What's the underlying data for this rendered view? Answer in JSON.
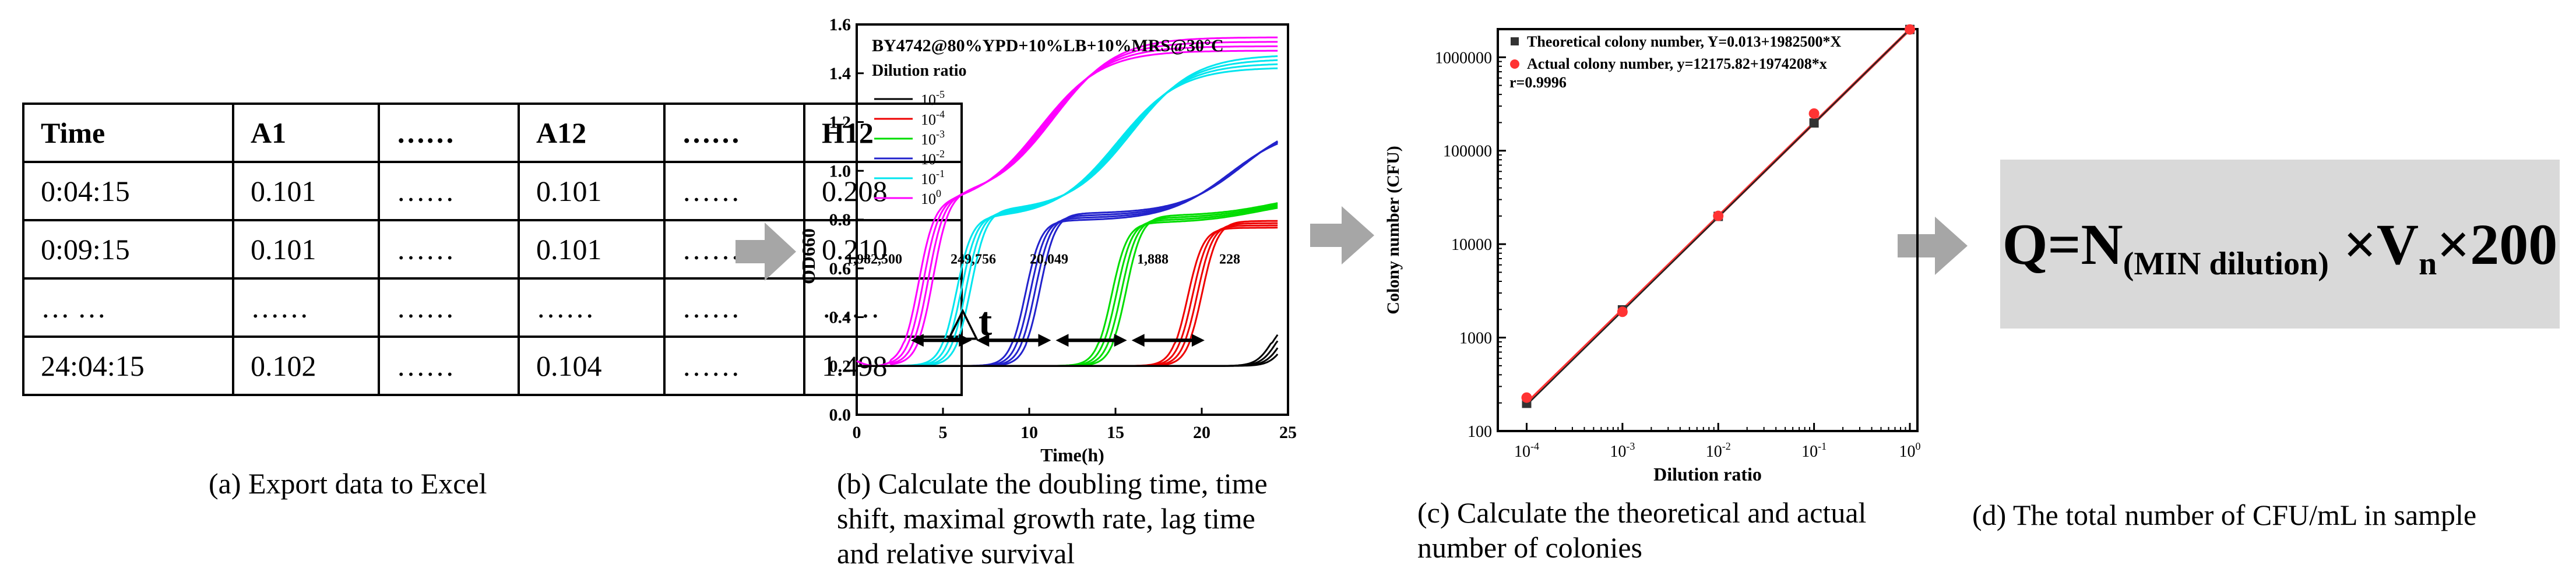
{
  "panel_a": {
    "caption": "(a) Export data to Excel",
    "header": [
      "Time",
      "A1",
      "……",
      "A12",
      "……",
      "H12"
    ],
    "rows": [
      [
        "0:04:15",
        "0.101",
        "……",
        "0.101",
        "……",
        "0.208"
      ],
      [
        "0:09:15",
        "0.101",
        "……",
        "0.101",
        "……",
        "0.210"
      ],
      [
        "… …",
        "……",
        "……",
        "……",
        "……",
        "……"
      ],
      [
        "24:04:15",
        "0.102",
        "……",
        "0.104",
        "……",
        "1.498"
      ]
    ]
  },
  "panel_b": {
    "caption_lines": [
      "(b) Calculate the doubling time, time",
      "shift, maximal growth rate, lag time",
      "and relative survival"
    ],
    "delta_t_label": "△t",
    "colony_labels": [
      "1,982,500",
      "249,756",
      "20,049",
      "1,888",
      "228"
    ]
  },
  "panel_c": {
    "caption_lines": [
      "(c) Calculate the theoretical and actual",
      "number of colonies"
    ]
  },
  "panel_d": {
    "caption": "(d) The total number of CFU/mL in sample",
    "formula": {
      "q": "Q=N",
      "sub_n": "(MIN dilution)",
      "mid": "×V",
      "sub_v": "n",
      "end": "×200"
    }
  },
  "colors": {
    "arrow": "#a6a6a6",
    "box": "#d9d9d9"
  },
  "chart_data": [
    {
      "type": "line",
      "title": "BY4742@80%YPD+10%LB+10%MRS@30°C",
      "xlabel": "Time(h)",
      "ylabel": "OD660",
      "xlim": [
        0,
        25
      ],
      "ylim": [
        0.0,
        1.6
      ],
      "xticks": [
        0,
        5,
        10,
        15,
        20,
        25
      ],
      "yticks": [
        0.0,
        0.2,
        0.4,
        0.6,
        0.8,
        1.0,
        1.2,
        1.4,
        1.6
      ],
      "legend_title": "Dilution ratio",
      "legend_position": "top-left",
      "series": [
        {
          "name": "10^0",
          "color": "#ff00ff",
          "lag_h": 1.0,
          "mid1_h": 4.0,
          "plateau1": 0.87,
          "mid2_h": 11.0,
          "final": 1.52
        },
        {
          "name": "10^-1",
          "color": "#00e5ee",
          "lag_h": 4.5,
          "mid1_h": 6.2,
          "plateau1": 0.82,
          "mid2_h": 15.5,
          "final": 1.45
        },
        {
          "name": "10^-2",
          "color": "#2222cc",
          "lag_h": 8.5,
          "mid1_h": 10.2,
          "plateau1": 0.81,
          "mid2_h": 22.0,
          "final": 1.2
        },
        {
          "name": "10^-3",
          "color": "#00dd00",
          "lag_h": 12.5,
          "mid1_h": 15.2,
          "plateau1": 0.8,
          "mid2_h": 23.8,
          "final": 0.9
        },
        {
          "name": "10^-4",
          "color": "#ee0000",
          "lag_h": 17.0,
          "mid1_h": 19.6,
          "plateau1": 0.78,
          "mid2_h": 30.0,
          "final": 0.8
        },
        {
          "name": "10^-5",
          "color": "#000000",
          "lag_h": 20.5,
          "mid1_h": 24.5,
          "plateau1": 0.4,
          "mid2_h": 40.0,
          "final": 0.4
        }
      ],
      "arrow_points_h": [
        3.0,
        6.8,
        11.4,
        15.8,
        20.3
      ]
    },
    {
      "type": "scatter",
      "xlabel": "Dilution ratio",
      "ylabel": "Colony number (CFU)",
      "xscale": "log",
      "yscale": "log",
      "xlim": [
        5e-05,
        1.2
      ],
      "ylim": [
        100,
        2000000
      ],
      "xtick_labels": [
        "10^-4",
        "10^-3",
        "10^-2",
        "10^-1",
        "10^0"
      ],
      "ytick_labels": [
        "100",
        "1000",
        "10000",
        "100000",
        "1000000"
      ],
      "legend_position": "top-left",
      "series": [
        {
          "name": "Theoretical colony number, Y=0.013+1982500*X",
          "marker": "square",
          "color": "#333333",
          "x": [
            0.0001,
            0.001,
            0.01,
            0.1,
            1
          ],
          "y": [
            198,
            1982,
            19825,
            198250,
            1982500
          ]
        },
        {
          "name": "Actual colony number, y=12175.82+1974208*x",
          "marker": "circle",
          "color": "#ff3333",
          "x": [
            0.0001,
            0.001,
            0.01,
            0.1,
            1
          ],
          "y": [
            228,
            1888,
            20049,
            249756,
            1982500
          ]
        }
      ],
      "annotation": "r=0.9996"
    }
  ]
}
